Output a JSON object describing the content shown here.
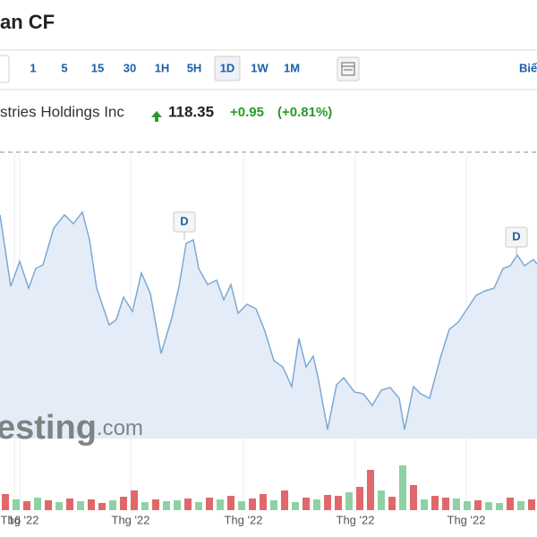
{
  "header": {
    "title": "an CF"
  },
  "toolbar": {
    "intervals": [
      "1",
      "5",
      "15",
      "30",
      "1H",
      "5H",
      "1D",
      "1W",
      "1M"
    ],
    "active": 6,
    "right_label": "Biể"
  },
  "quote": {
    "name": "stries Holdings Inc",
    "price": "118.35",
    "change": "+0.95",
    "change_pct": "(+0.81%)"
  },
  "watermark": {
    "main": "esting",
    "suffix": ".com"
  },
  "chart_data": {
    "type": "area",
    "x": [
      0,
      12,
      22,
      32,
      40,
      48,
      60,
      72,
      82,
      92,
      100,
      108,
      122,
      130,
      138,
      148,
      158,
      168,
      180,
      192,
      200,
      208,
      216,
      222,
      232,
      242,
      250,
      258,
      266,
      276,
      286,
      296,
      306,
      316,
      326,
      334,
      342,
      350,
      356,
      366,
      376,
      384,
      396,
      406,
      416,
      426,
      436,
      446,
      452,
      462,
      470,
      480,
      492,
      502,
      512,
      522,
      532,
      542,
      552,
      562,
      570,
      578,
      586,
      596,
      600
    ],
    "values": [
      123.85,
      115.85,
      118.65,
      115.65,
      117.85,
      118.25,
      122.35,
      123.85,
      122.85,
      124.15,
      121.05,
      115.65,
      111.55,
      112.15,
      114.65,
      113.05,
      117.35,
      115.05,
      108.35,
      112.35,
      115.85,
      120.65,
      121.05,
      117.85,
      116.05,
      116.55,
      114.35,
      116.05,
      112.85,
      113.85,
      113.35,
      110.85,
      107.55,
      106.85,
      104.65,
      110.05,
      106.85,
      108.05,
      105.35,
      99.85,
      104.85,
      105.65,
      104.05,
      103.85,
      102.55,
      104.25,
      104.55,
      103.35,
      99.85,
      104.65,
      103.85,
      103.35,
      107.85,
      111.05,
      111.85,
      113.35,
      114.85,
      115.35,
      115.65,
      117.85,
      118.15,
      119.35,
      118.15,
      118.85,
      118.35
    ],
    "color": "#7ea8d3",
    "fill": "#e4edf7",
    "xlim": [
      0,
      600
    ],
    "ylim": [
      98.85,
      130.85
    ],
    "xticks": [
      {
        "value": 22,
        "label": "Thg '22"
      },
      {
        "value": 146,
        "label": "Thg '22"
      },
      {
        "value": 272,
        "label": "Thg '22"
      },
      {
        "value": 397,
        "label": "Thg '22"
      },
      {
        "value": 521,
        "label": "Thg '22"
      },
      16
    ],
    "grid": true,
    "annotations": [
      {
        "x": 206,
        "y": 121.05,
        "text": "D"
      },
      {
        "x": 577,
        "y": 119.35,
        "text": "D"
      }
    ],
    "volume": {
      "up_color": "#8fd1a5",
      "down_color": "#e0686a",
      "values": [
        18,
        12,
        10,
        14,
        11,
        9,
        13,
        10,
        12,
        8,
        11,
        15,
        22,
        9,
        12,
        10,
        11,
        13,
        9,
        14,
        12,
        16,
        10,
        13,
        18,
        11,
        22,
        9,
        14,
        12,
        17,
        16,
        20,
        26,
        45,
        22,
        15,
        50,
        28,
        12,
        16,
        14,
        13,
        10,
        11,
        9,
        8,
        14,
        10,
        12
      ],
      "directions": [
        "down",
        "up",
        "down",
        "up",
        "down",
        "up",
        "down",
        "up",
        "down",
        "down",
        "up",
        "down",
        "down",
        "up",
        "down",
        "up",
        "up",
        "down",
        "up",
        "down",
        "up",
        "down",
        "up",
        "down",
        "down",
        "up",
        "down",
        "up",
        "down",
        "up",
        "down",
        "down",
        "up",
        "down",
        "down",
        "up",
        "down",
        "up",
        "down",
        "up",
        "down",
        "down",
        "up",
        "up",
        "down",
        "up",
        "up",
        "down",
        "up",
        "down"
      ]
    }
  }
}
